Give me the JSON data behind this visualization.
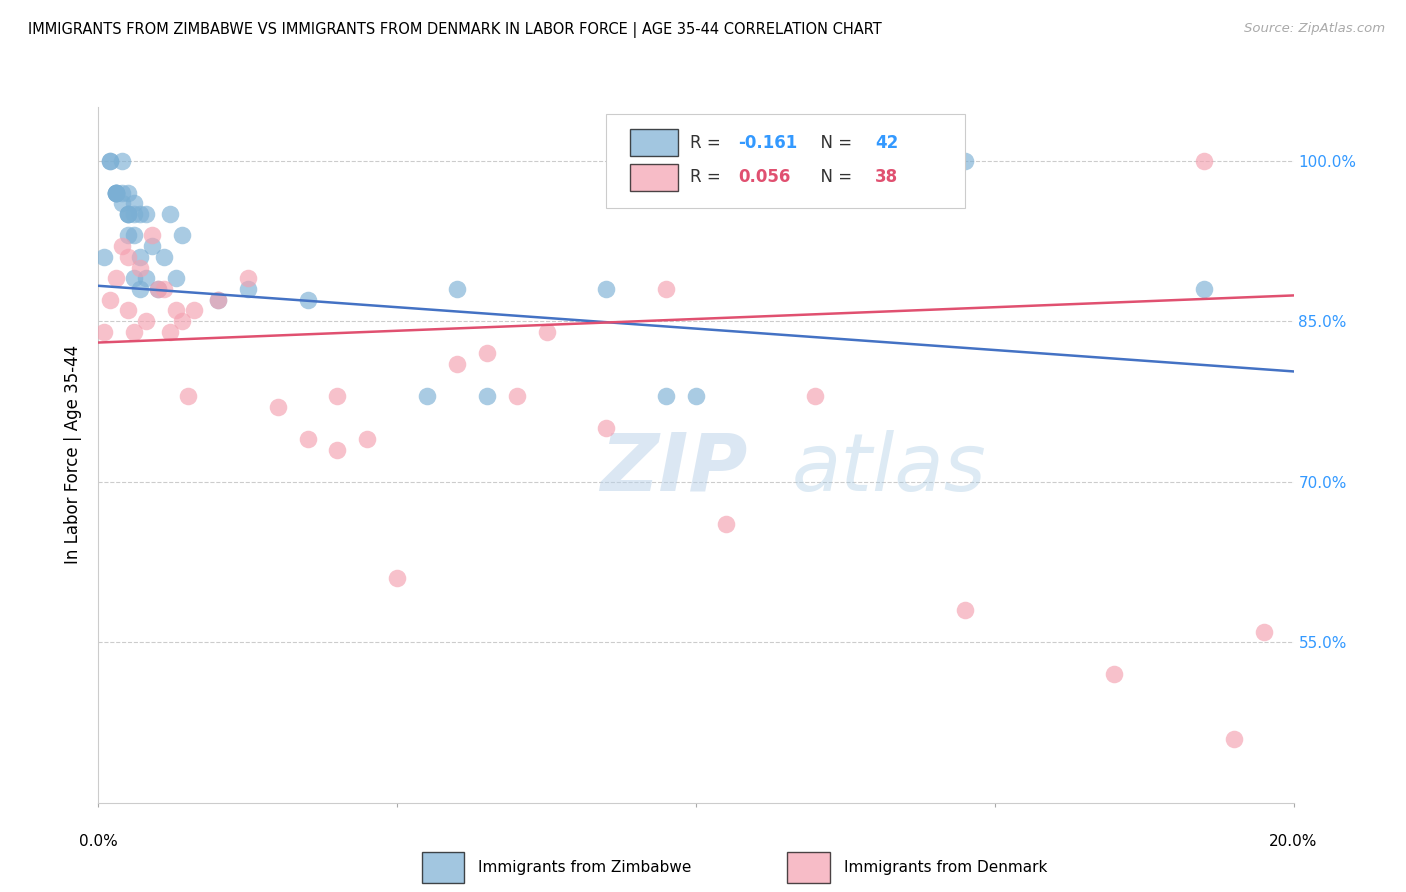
{
  "title": "IMMIGRANTS FROM ZIMBABWE VS IMMIGRANTS FROM DENMARK IN LABOR FORCE | AGE 35-44 CORRELATION CHART",
  "source": "Source: ZipAtlas.com",
  "ylabel": "In Labor Force | Age 35-44",
  "xlim": [
    0.0,
    0.2
  ],
  "ylim": [
    0.4,
    1.05
  ],
  "yticks": [
    0.55,
    0.7,
    0.85,
    1.0
  ],
  "ytick_labels": [
    "55.0%",
    "70.0%",
    "85.0%",
    "100.0%"
  ],
  "grid_color": "#cccccc",
  "background_color": "#ffffff",
  "legend_r_zimbabwe": "-0.161",
  "legend_n_zimbabwe": "42",
  "legend_r_denmark": "0.056",
  "legend_n_denmark": "38",
  "zimbabwe_color": "#7bafd4",
  "denmark_color": "#f4a0b0",
  "zimbabwe_line_color": "#4472c4",
  "denmark_line_color": "#e05070",
  "watermark_zip": "ZIP",
  "watermark_atlas": "atlas",
  "zimbabwe_x": [
    0.001,
    0.002,
    0.002,
    0.003,
    0.003,
    0.003,
    0.003,
    0.003,
    0.004,
    0.004,
    0.004,
    0.005,
    0.005,
    0.005,
    0.005,
    0.005,
    0.006,
    0.006,
    0.006,
    0.006,
    0.007,
    0.007,
    0.007,
    0.008,
    0.008,
    0.009,
    0.01,
    0.011,
    0.012,
    0.013,
    0.014,
    0.02,
    0.025,
    0.035,
    0.055,
    0.06,
    0.065,
    0.085,
    0.095,
    0.1,
    0.145,
    0.185
  ],
  "zimbabwe_y": [
    0.91,
    1.0,
    1.0,
    0.97,
    0.97,
    0.97,
    0.97,
    0.97,
    0.96,
    0.97,
    1.0,
    0.93,
    0.95,
    0.95,
    0.95,
    0.97,
    0.89,
    0.93,
    0.95,
    0.96,
    0.88,
    0.91,
    0.95,
    0.89,
    0.95,
    0.92,
    0.88,
    0.91,
    0.95,
    0.89,
    0.93,
    0.87,
    0.88,
    0.87,
    0.78,
    0.88,
    0.78,
    0.88,
    0.78,
    0.78,
    1.0,
    0.88
  ],
  "denmark_x": [
    0.001,
    0.002,
    0.003,
    0.004,
    0.005,
    0.005,
    0.006,
    0.007,
    0.008,
    0.009,
    0.01,
    0.011,
    0.012,
    0.013,
    0.014,
    0.015,
    0.016,
    0.02,
    0.025,
    0.03,
    0.035,
    0.04,
    0.04,
    0.045,
    0.05,
    0.06,
    0.065,
    0.07,
    0.075,
    0.085,
    0.095,
    0.105,
    0.12,
    0.145,
    0.17,
    0.185,
    0.19,
    0.195
  ],
  "denmark_y": [
    0.84,
    0.87,
    0.89,
    0.92,
    0.86,
    0.91,
    0.84,
    0.9,
    0.85,
    0.93,
    0.88,
    0.88,
    0.84,
    0.86,
    0.85,
    0.78,
    0.86,
    0.87,
    0.89,
    0.77,
    0.74,
    0.73,
    0.78,
    0.74,
    0.61,
    0.81,
    0.82,
    0.78,
    0.84,
    0.75,
    0.88,
    0.66,
    0.78,
    0.58,
    0.52,
    1.0,
    0.46,
    0.56
  ]
}
